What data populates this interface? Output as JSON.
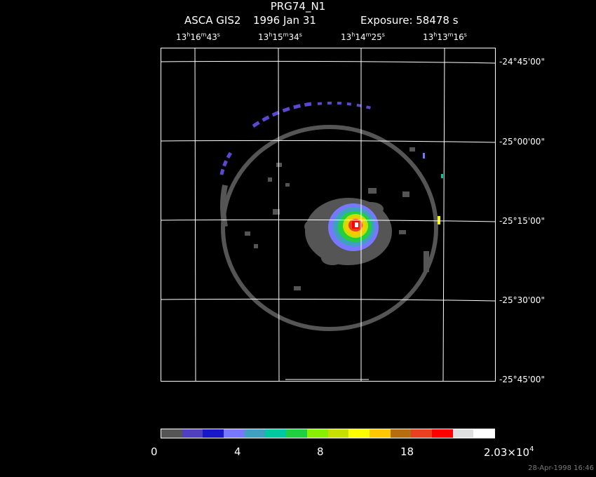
{
  "header": {
    "title": "PRG74_N1",
    "instrument": "ASCA GIS2",
    "date": "1996 Jan 31",
    "exposure": "Exposure: 58478 s"
  },
  "ra_ticks": [
    {
      "h": "13",
      "m": "16",
      "s": "43"
    },
    {
      "h": "13",
      "m": "15",
      "s": "34"
    },
    {
      "h": "13",
      "m": "14",
      "s": "25"
    },
    {
      "h": "13",
      "m": "13",
      "s": "16"
    }
  ],
  "dec_ticks": [
    "-24°45'00\"",
    "-25°00'00\"",
    "-25°15'00\"",
    "-25°30'00\"",
    "-25°45'00\""
  ],
  "colorbar": {
    "colors": [
      "#555555",
      "#5040c0",
      "#1818c8",
      "#7878ff",
      "#40a0c0",
      "#00c8a0",
      "#20d040",
      "#88f000",
      "#c8e000",
      "#ffff00",
      "#ffc800",
      "#b86c10",
      "#e84020",
      "#ff0000",
      "#e0e0e0",
      "#ffffff"
    ],
    "labels": {
      "l0": "0",
      "l1": "4",
      "l2": "8",
      "l3": "18",
      "lmax": "2.03×10",
      "lexp": "4"
    }
  },
  "timestamp": "28-Apr-1998 16:46"
}
